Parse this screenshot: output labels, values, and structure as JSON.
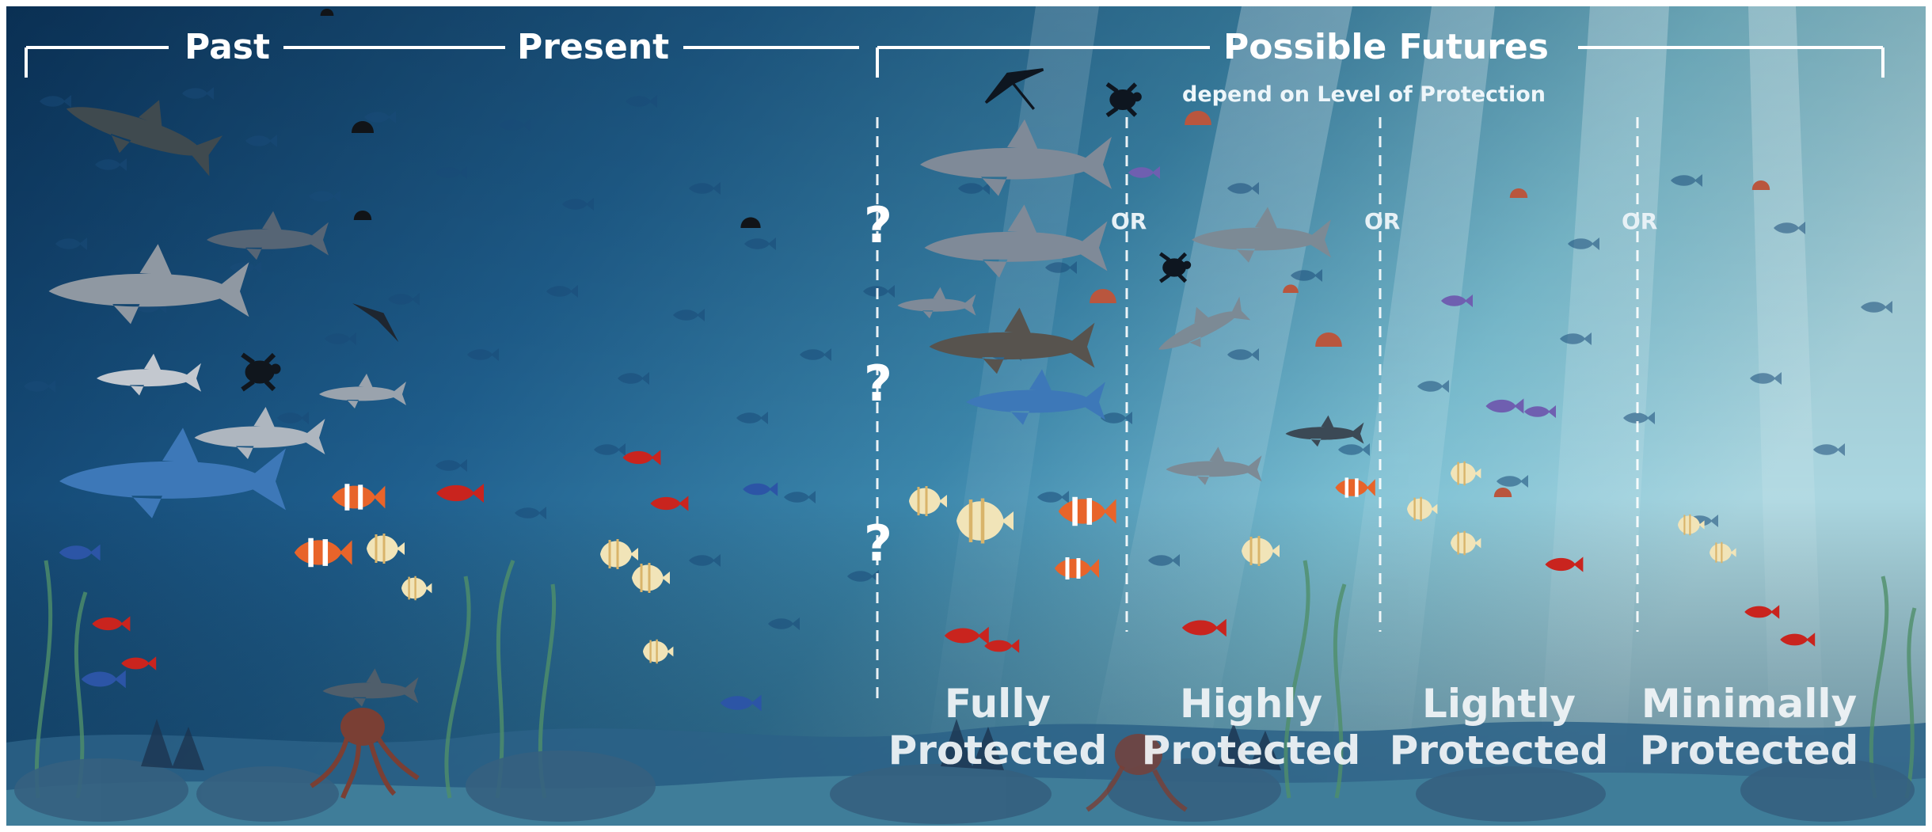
{
  "header": {
    "past": "Past",
    "present": "Present",
    "futures": "Possible Futures",
    "futures_sub": "depend on Level of Protection"
  },
  "zones": [
    {
      "line1": "Fully",
      "line2": "Protected"
    },
    {
      "line1": "Highly",
      "line2": "Protected"
    },
    {
      "line1": "Lightly",
      "line2": "Protected"
    },
    {
      "line1": "Minimally",
      "line2": "Protected"
    }
  ],
  "separators": [
    "OR",
    "OR",
    "OR"
  ],
  "question_marks": [
    "?",
    "?",
    "?"
  ],
  "colors": {
    "water_deep": "#0f3d66",
    "water_mid": "#2a6f99",
    "water_light": "#7fc3d6",
    "clownfish": "#e8642a",
    "red_fish": "#c9241e",
    "butterflyfish": "#f1e4b8",
    "shark": "#8d97a6",
    "blue_shark": "#3d78b8",
    "octopus": "#7a3f34",
    "jellyfish": "#b9563e"
  },
  "icons": [
    "shark-icon",
    "hammerhead-icon",
    "dolphin-icon",
    "manta-ray-icon",
    "sea-turtle-icon",
    "jellyfish-icon",
    "clownfish-icon",
    "butterflyfish-icon",
    "tang-icon",
    "octopus-icon",
    "seaweed-icon",
    "coral-icon"
  ]
}
